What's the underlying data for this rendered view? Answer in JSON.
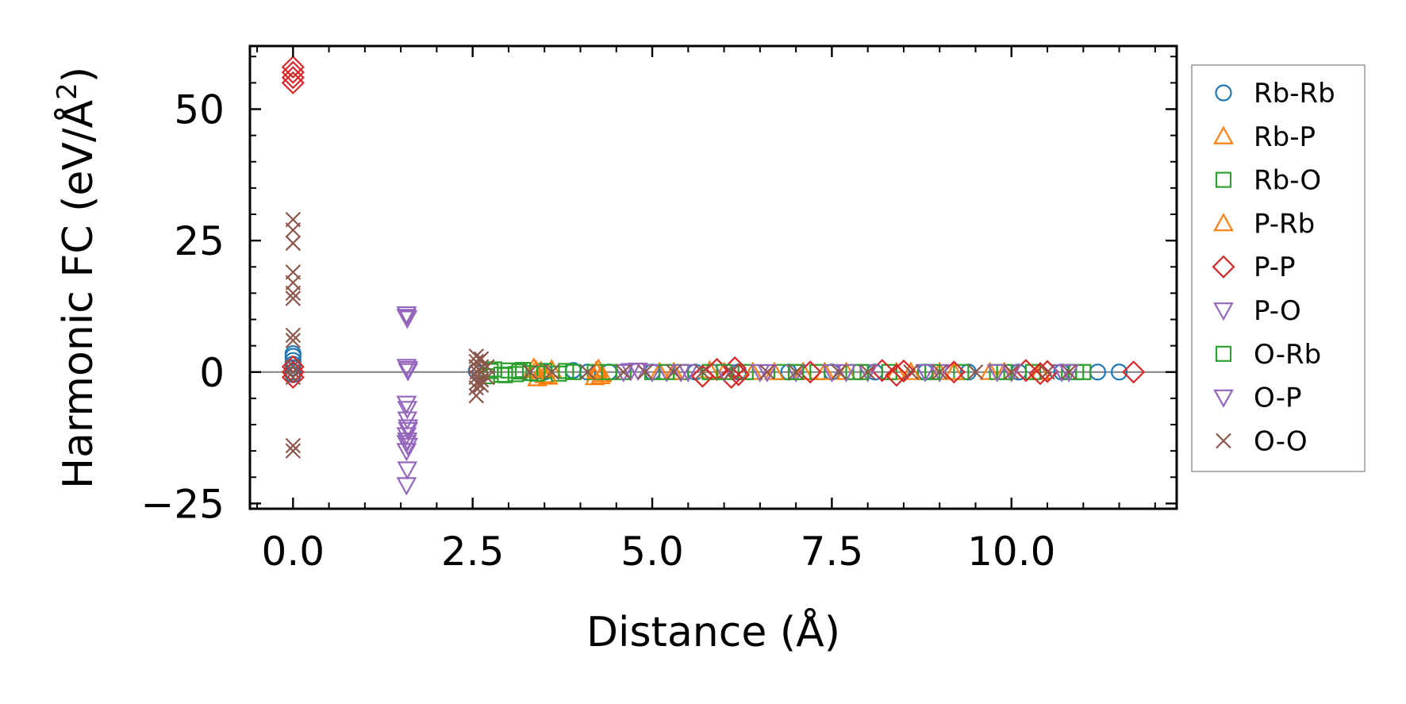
{
  "chart_data": {
    "type": "scatter",
    "title": "",
    "xlabel": "Distance (Å)",
    "ylabel_main": "Harmonic FC (eV/Å",
    "ylabel_sup": "2",
    "ylabel_close": ")",
    "xlim": [
      -0.6,
      12.3
    ],
    "ylim": [
      -26,
      62
    ],
    "xticks": [
      0.0,
      2.5,
      5.0,
      7.5,
      10.0
    ],
    "xtick_labels": [
      "0.0",
      "2.5",
      "5.0",
      "7.5",
      "10.0"
    ],
    "yticks": [
      -25,
      0,
      25,
      50
    ],
    "ytick_labels": [
      "−25",
      "0",
      "25",
      "50"
    ],
    "x_minor_step": 0.5,
    "y_minor_step": 5,
    "zero_line": true,
    "legend_position": "outside-right",
    "series": [
      {
        "name": "Rb-Rb",
        "marker": "circle",
        "color": "#1f77b4",
        "points": [
          [
            0,
            0
          ],
          [
            0,
            0.8
          ],
          [
            0,
            1.5
          ],
          [
            0,
            2.2
          ],
          [
            0,
            3
          ],
          [
            0,
            3.5
          ],
          [
            0,
            -0.5
          ],
          [
            2.55,
            0.2
          ],
          [
            2.6,
            -0.3
          ],
          [
            3.5,
            0
          ],
          [
            3.9,
            0.3
          ],
          [
            4.1,
            0
          ],
          [
            4.4,
            0
          ],
          [
            5,
            0
          ],
          [
            5.6,
            0
          ],
          [
            6.2,
            0
          ],
          [
            6.9,
            0
          ],
          [
            7.5,
            0
          ],
          [
            8.1,
            0
          ],
          [
            8.8,
            0
          ],
          [
            9.4,
            0
          ],
          [
            10.1,
            0
          ],
          [
            10.7,
            0
          ],
          [
            11.2,
            0
          ],
          [
            11.5,
            0
          ]
        ]
      },
      {
        "name": "Rb-P",
        "marker": "triangle-up",
        "color": "#ff7f0e",
        "points": [
          [
            3.35,
            0.8
          ],
          [
            3.4,
            -1.2
          ],
          [
            3.45,
            0.2
          ],
          [
            3.5,
            -0.6
          ],
          [
            3.6,
            0.5
          ],
          [
            4.2,
            -1
          ],
          [
            4.25,
            0.6
          ],
          [
            4.3,
            -0.4
          ],
          [
            5.1,
            0
          ],
          [
            5.8,
            0.3
          ],
          [
            6.4,
            0
          ],
          [
            7.1,
            0
          ],
          [
            7.7,
            0
          ],
          [
            8.4,
            0
          ],
          [
            9.0,
            0
          ],
          [
            9.7,
            0
          ],
          [
            10.4,
            0
          ]
        ]
      },
      {
        "name": "Rb-O",
        "marker": "square",
        "color": "#2ca02c",
        "points": [
          [
            2.7,
            -0.8
          ],
          [
            2.8,
            0.5
          ],
          [
            2.9,
            -0.5
          ],
          [
            3.0,
            0.3
          ],
          [
            3.1,
            -0.4
          ],
          [
            3.2,
            0.4
          ],
          [
            3.3,
            -0.2
          ],
          [
            3.5,
            0.2
          ],
          [
            3.7,
            -0.3
          ],
          [
            3.9,
            0
          ],
          [
            4.2,
            0
          ],
          [
            4.6,
            0
          ],
          [
            5.0,
            0
          ],
          [
            5.4,
            0
          ],
          [
            5.8,
            0
          ],
          [
            6.3,
            0
          ],
          [
            6.8,
            0
          ],
          [
            7.3,
            0
          ],
          [
            7.8,
            0
          ],
          [
            8.3,
            0
          ],
          [
            8.8,
            0
          ],
          [
            9.3,
            0
          ],
          [
            9.8,
            0
          ],
          [
            10.3,
            0
          ],
          [
            10.8,
            0
          ],
          [
            11.0,
            0
          ]
        ]
      },
      {
        "name": "P-Rb",
        "marker": "triangle-up",
        "color": "#ff7f0e",
        "points": [
          [
            3.38,
            0.4
          ],
          [
            3.55,
            -0.9
          ],
          [
            4.22,
            0.2
          ],
          [
            4.28,
            -0.8
          ],
          [
            5.3,
            0
          ],
          [
            6.0,
            0
          ],
          [
            6.7,
            0
          ],
          [
            7.4,
            0
          ],
          [
            8.6,
            0
          ],
          [
            9.2,
            0
          ],
          [
            9.9,
            0
          ]
        ]
      },
      {
        "name": "P-P",
        "marker": "diamond",
        "color": "#d62728",
        "points": [
          [
            0,
            58
          ],
          [
            0,
            57
          ],
          [
            0,
            56
          ],
          [
            0,
            55
          ],
          [
            0,
            1
          ],
          [
            0,
            0
          ],
          [
            0,
            -1
          ],
          [
            5.7,
            -0.8
          ],
          [
            5.9,
            0.5
          ],
          [
            6.1,
            -1
          ],
          [
            6.15,
            0.8
          ],
          [
            6.2,
            -0.5
          ],
          [
            7.2,
            0
          ],
          [
            8.2,
            0.3
          ],
          [
            8.4,
            -0.6
          ],
          [
            8.5,
            0.2
          ],
          [
            9.2,
            0
          ],
          [
            10.2,
            0.3
          ],
          [
            10.4,
            -0.3
          ],
          [
            10.5,
            0.1
          ],
          [
            11.7,
            0
          ]
        ]
      },
      {
        "name": "P-O",
        "marker": "triangle-down",
        "color": "#9467bd",
        "points": [
          [
            1.58,
            11
          ],
          [
            1.59,
            10.2
          ],
          [
            1.58,
            1
          ],
          [
            1.6,
            0.2
          ],
          [
            1.58,
            -6
          ],
          [
            1.59,
            -9
          ],
          [
            1.6,
            -10.5
          ],
          [
            1.58,
            -12
          ],
          [
            1.59,
            -13
          ],
          [
            1.6,
            -14
          ],
          [
            1.58,
            -15
          ],
          [
            1.59,
            -18.5
          ],
          [
            1.58,
            -21.5
          ],
          [
            4.6,
            0
          ],
          [
            4.8,
            0.3
          ],
          [
            5.0,
            0
          ],
          [
            5.2,
            0
          ],
          [
            5.5,
            0
          ],
          [
            6.0,
            0
          ],
          [
            6.5,
            0
          ],
          [
            7.0,
            0
          ],
          [
            7.5,
            0
          ],
          [
            8.0,
            0
          ],
          [
            9.0,
            0
          ],
          [
            10.0,
            0
          ],
          [
            10.7,
            0
          ]
        ]
      },
      {
        "name": "O-Rb",
        "marker": "square",
        "color": "#2ca02c",
        "points": [
          [
            2.75,
            0.2
          ],
          [
            2.95,
            -0.6
          ],
          [
            3.15,
            0.1
          ],
          [
            3.4,
            -0.3
          ],
          [
            3.8,
            0.2
          ],
          [
            4.4,
            0
          ],
          [
            5.2,
            0
          ],
          [
            6.0,
            0
          ],
          [
            7.0,
            0
          ],
          [
            7.9,
            0
          ],
          [
            8.9,
            0
          ],
          [
            9.9,
            0
          ],
          [
            10.9,
            0
          ]
        ]
      },
      {
        "name": "O-P",
        "marker": "triangle-down",
        "color": "#9467bd",
        "points": [
          [
            1.58,
            10.5
          ],
          [
            1.6,
            0.6
          ],
          [
            1.59,
            -7
          ],
          [
            1.6,
            -11
          ],
          [
            1.58,
            -13.5
          ],
          [
            4.7,
            0.2
          ],
          [
            5.4,
            0
          ],
          [
            6.6,
            0
          ],
          [
            7.7,
            0
          ],
          [
            8.8,
            0
          ],
          [
            9.8,
            0
          ],
          [
            10.8,
            0
          ]
        ]
      },
      {
        "name": "O-O",
        "marker": "x",
        "color": "#8c564b",
        "points": [
          [
            0,
            29
          ],
          [
            0,
            27
          ],
          [
            0,
            24.5
          ],
          [
            0,
            19
          ],
          [
            0,
            17
          ],
          [
            0,
            15
          ],
          [
            0,
            14
          ],
          [
            0,
            7
          ],
          [
            0,
            6
          ],
          [
            0,
            1
          ],
          [
            0,
            0
          ],
          [
            0,
            -1
          ],
          [
            0,
            -14
          ],
          [
            0,
            -15
          ],
          [
            2.55,
            3
          ],
          [
            2.55,
            2
          ],
          [
            2.55,
            1
          ],
          [
            2.56,
            0
          ],
          [
            2.55,
            -1
          ],
          [
            2.56,
            -2
          ],
          [
            2.55,
            -3
          ],
          [
            2.55,
            -4.5
          ],
          [
            2.62,
            2.5
          ],
          [
            2.62,
            1
          ],
          [
            2.62,
            0
          ],
          [
            2.62,
            -1.5
          ],
          [
            2.62,
            -2.5
          ],
          [
            2.7,
            1
          ],
          [
            2.7,
            -1
          ],
          [
            3.3,
            0
          ],
          [
            3.6,
            0
          ],
          [
            4.1,
            0
          ],
          [
            4.6,
            0
          ],
          [
            4.9,
            0
          ],
          [
            5.3,
            0
          ],
          [
            5.7,
            0
          ],
          [
            6.1,
            0
          ],
          [
            6.6,
            0
          ],
          [
            7.0,
            0
          ],
          [
            7.6,
            0
          ],
          [
            8.0,
            0
          ],
          [
            8.6,
            0
          ],
          [
            9.0,
            0
          ],
          [
            9.5,
            0
          ],
          [
            10.0,
            0
          ],
          [
            10.5,
            0
          ],
          [
            10.8,
            0
          ]
        ]
      }
    ]
  }
}
